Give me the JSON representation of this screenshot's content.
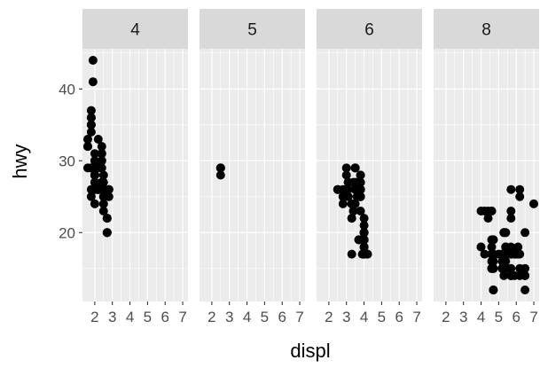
{
  "chart_data": {
    "type": "scatter",
    "facet_variable": "cyl",
    "xlabel": "displ",
    "ylabel": "hwy",
    "xlim": [
      1.3,
      7.3
    ],
    "ylim": [
      10.4,
      45.6
    ],
    "x_ticks": [
      2,
      3,
      4,
      5,
      6,
      7
    ],
    "y_ticks": [
      20,
      30,
      40
    ],
    "grid": true,
    "colors": {
      "panel_background": "#ebebeb",
      "strip_background": "#d9d9d9",
      "grid": "#ffffff",
      "point": "#000000"
    },
    "facets": [
      {
        "label": "4",
        "points": [
          [
            1.8,
            29
          ],
          [
            1.8,
            29
          ],
          [
            2.0,
            31
          ],
          [
            2.0,
            30
          ],
          [
            2.8,
            26
          ],
          [
            2.8,
            26
          ],
          [
            1.8,
            26
          ],
          [
            1.8,
            25
          ],
          [
            2.0,
            28
          ],
          [
            2.0,
            27
          ],
          [
            2.8,
            25
          ],
          [
            2.4,
            27
          ],
          [
            2.4,
            30
          ],
          [
            2.2,
            26
          ],
          [
            2.2,
            29
          ],
          [
            2.4,
            27
          ],
          [
            2.4,
            31
          ],
          [
            2.2,
            33
          ],
          [
            2.2,
            26
          ],
          [
            2.4,
            32
          ],
          [
            2.4,
            29
          ],
          [
            2.5,
            25
          ],
          [
            2.5,
            24
          ],
          [
            2.5,
            23
          ],
          [
            2.7,
            20
          ],
          [
            2.7,
            22
          ],
          [
            2.7,
            22
          ],
          [
            2.0,
            28
          ],
          [
            2.0,
            29
          ],
          [
            2.0,
            27
          ],
          [
            2.0,
            29
          ],
          [
            1.6,
            33
          ],
          [
            1.6,
            32
          ],
          [
            1.6,
            32
          ],
          [
            1.6,
            29
          ],
          [
            1.6,
            32
          ],
          [
            1.8,
            34
          ],
          [
            1.8,
            36
          ],
          [
            1.8,
            36
          ],
          [
            2.0,
            29
          ],
          [
            2.4,
            26
          ],
          [
            2.4,
            27
          ],
          [
            2.4,
            30
          ],
          [
            2.4,
            31
          ],
          [
            1.9,
            44
          ],
          [
            2.0,
            29
          ],
          [
            2.0,
            26
          ],
          [
            2.0,
            29
          ],
          [
            2.5,
            28
          ],
          [
            1.8,
            35
          ],
          [
            1.8,
            37
          ],
          [
            1.8,
            35
          ],
          [
            1.9,
            41
          ],
          [
            2.0,
            24
          ],
          [
            2.0,
            28
          ],
          [
            2.2,
            26
          ],
          [
            2.5,
            27
          ],
          [
            2.5,
            25
          ],
          [
            2.5,
            26
          ],
          [
            2.0,
            28
          ],
          [
            2.0,
            30
          ],
          [
            2.0,
            29
          ],
          [
            2.0,
            26
          ],
          [
            2.7,
            20
          ],
          [
            2.7,
            20
          ],
          [
            2.7,
            22
          ]
        ]
      },
      {
        "label": "5",
        "points": [
          [
            2.5,
            29
          ],
          [
            2.5,
            29
          ],
          [
            2.5,
            28
          ],
          [
            2.5,
            29
          ]
        ]
      },
      {
        "label": "6",
        "points": [
          [
            2.8,
            26
          ],
          [
            3.1,
            27
          ],
          [
            2.8,
            25
          ],
          [
            3.1,
            25
          ],
          [
            3.1,
            27
          ],
          [
            3.8,
            26
          ],
          [
            3.8,
            25
          ],
          [
            3.8,
            23
          ],
          [
            3.8,
            26
          ],
          [
            3.3,
            24
          ],
          [
            3.3,
            24
          ],
          [
            3.3,
            22
          ],
          [
            3.3,
            24
          ],
          [
            3.3,
            17
          ],
          [
            3.3,
            22
          ],
          [
            3.3,
            24
          ],
          [
            3.9,
            17
          ],
          [
            4.0,
            19
          ],
          [
            4.0,
            17
          ],
          [
            4.0,
            17
          ],
          [
            4.0,
            18
          ],
          [
            4.0,
            19
          ],
          [
            4.2,
            17
          ],
          [
            3.8,
            26
          ],
          [
            3.8,
            27
          ],
          [
            3.7,
            19
          ],
          [
            3.7,
            19
          ],
          [
            4.2,
            17
          ],
          [
            4.0,
            17
          ],
          [
            4.0,
            17
          ],
          [
            4.0,
            18
          ],
          [
            4.0,
            19
          ],
          [
            2.5,
            26
          ],
          [
            2.5,
            26
          ],
          [
            3.0,
            26
          ],
          [
            3.5,
            29
          ],
          [
            3.0,
            26
          ],
          [
            3.5,
            26
          ],
          [
            3.3,
            24
          ],
          [
            3.3,
            24
          ],
          [
            3.1,
            26
          ],
          [
            3.8,
            26
          ],
          [
            3.8,
            28
          ],
          [
            3.6,
            26
          ],
          [
            3.5,
            29
          ],
          [
            3.4,
            23
          ],
          [
            3.4,
            23
          ],
          [
            4.0,
            20
          ],
          [
            4.0,
            19
          ],
          [
            4.0,
            18
          ],
          [
            4.0,
            17
          ],
          [
            3.1,
            27
          ],
          [
            3.4,
            27
          ],
          [
            3.0,
            28
          ],
          [
            3.0,
            26
          ],
          [
            3.0,
            26
          ],
          [
            3.5,
            27
          ],
          [
            3.5,
            29
          ],
          [
            3.8,
            28
          ],
          [
            3.6,
            27
          ],
          [
            3.8,
            25
          ],
          [
            3.8,
            25
          ],
          [
            3.8,
            27
          ],
          [
            3.8,
            26
          ],
          [
            4.0,
            22
          ],
          [
            4.0,
            20
          ],
          [
            4.0,
            21
          ],
          [
            4.0,
            20
          ],
          [
            2.8,
            24
          ],
          [
            2.8,
            25
          ],
          [
            3.6,
            25
          ],
          [
            3.5,
            24
          ],
          [
            3.3,
            24
          ],
          [
            4.0,
            20
          ],
          [
            4.0,
            20
          ],
          [
            4.0,
            19
          ],
          [
            3.0,
            29
          ]
        ]
      },
      {
        "label": "8",
        "points": [
          [
            4.2,
            23
          ],
          [
            5.3,
            20
          ],
          [
            5.3,
            15
          ],
          [
            5.3,
            20
          ],
          [
            5.7,
            17
          ],
          [
            6.0,
            17
          ],
          [
            5.7,
            26
          ],
          [
            5.7,
            23
          ],
          [
            6.2,
            26
          ],
          [
            6.2,
            25
          ],
          [
            7.0,
            24
          ],
          [
            5.2,
            17
          ],
          [
            5.2,
            15
          ],
          [
            4.7,
            17
          ],
          [
            4.7,
            17
          ],
          [
            4.7,
            19
          ],
          [
            4.7,
            16
          ],
          [
            5.2,
            15
          ],
          [
            5.2,
            17
          ],
          [
            5.7,
            17
          ],
          [
            5.9,
            17
          ],
          [
            5.2,
            15
          ],
          [
            5.2,
            15
          ],
          [
            5.7,
            17
          ],
          [
            5.9,
            17
          ],
          [
            4.7,
            12
          ],
          [
            4.7,
            12
          ],
          [
            4.7,
            16
          ],
          [
            4.7,
            17
          ],
          [
            5.3,
            14
          ],
          [
            5.3,
            15
          ],
          [
            5.3,
            17
          ],
          [
            5.3,
            16
          ],
          [
            5.4,
            16
          ],
          [
            5.4,
            18
          ],
          [
            5.4,
            17
          ],
          [
            5.4,
            18
          ],
          [
            5.0,
            17
          ],
          [
            5.7,
            18
          ],
          [
            5.4,
            17
          ],
          [
            4.6,
            16
          ],
          [
            5.4,
            15
          ],
          [
            5.4,
            17
          ],
          [
            4.6,
            23
          ],
          [
            5.4,
            18
          ],
          [
            4.6,
            17
          ],
          [
            5.4,
            15
          ],
          [
            4.7,
            19
          ],
          [
            5.7,
            17
          ],
          [
            6.1,
            17
          ],
          [
            6.5,
            12
          ],
          [
            4.7,
            19
          ],
          [
            5.7,
            14
          ],
          [
            4.6,
            17
          ],
          [
            4.4,
            22
          ],
          [
            4.4,
            23
          ],
          [
            4.0,
            23
          ],
          [
            6.2,
            14
          ],
          [
            6.2,
            17
          ],
          [
            6.5,
            20
          ],
          [
            6.5,
            14
          ],
          [
            4.7,
            15
          ],
          [
            4.7,
            15
          ],
          [
            4.7,
            15
          ],
          [
            5.7,
            14
          ],
          [
            5.9,
            14
          ],
          [
            4.6,
            18
          ],
          [
            5.4,
            15
          ],
          [
            5.4,
            15
          ],
          [
            4.6,
            17
          ],
          [
            5.2,
            16
          ],
          [
            6.1,
            18
          ],
          [
            4.7,
            12
          ],
          [
            5.3,
            16
          ],
          [
            5.7,
            15
          ],
          [
            5.7,
            17
          ],
          [
            6.0,
            17
          ],
          [
            5.7,
            22
          ],
          [
            4.2,
            17
          ],
          [
            4.0,
            18
          ],
          [
            4.7,
            16
          ],
          [
            6.2,
            15
          ],
          [
            5.4,
            17
          ],
          [
            4.6,
            23
          ],
          [
            4.6,
            19
          ],
          [
            5.4,
            20
          ],
          [
            5.4,
            20
          ],
          [
            4.6,
            17
          ],
          [
            4.6,
            15
          ],
          [
            6.5,
            15
          ],
          [
            6.5,
            14
          ],
          [
            5.7,
            14
          ],
          [
            4.6,
            15
          ],
          [
            4.0,
            18
          ],
          [
            6.0,
            17
          ]
        ]
      }
    ]
  }
}
